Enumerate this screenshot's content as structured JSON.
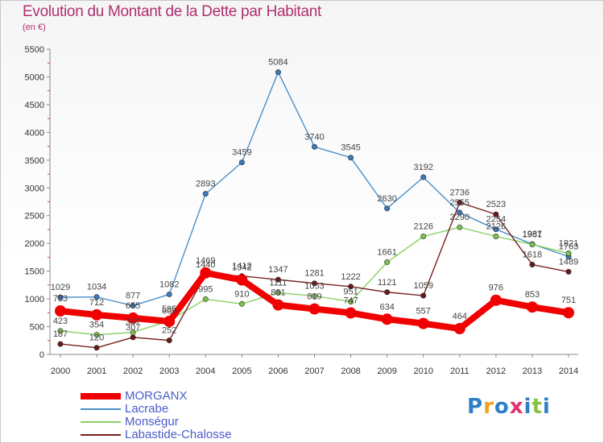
{
  "header": {
    "title": "Evolution du Montant de la Dette par Habitant",
    "unit": "(en €)"
  },
  "chart_data": {
    "type": "line",
    "title": "Evolution du Montant de la Dette par Habitant",
    "ylabel": "(en €)",
    "ylim": [
      0,
      5500
    ],
    "yticks": [
      0,
      500,
      1000,
      1500,
      2000,
      2500,
      3000,
      3500,
      4000,
      4500,
      5000,
      5500
    ],
    "x": [
      "2000",
      "2001",
      "2002",
      "2003",
      "2004",
      "2005",
      "2006",
      "2007",
      "2008",
      "2009",
      "2010",
      "2011",
      "2012",
      "2013",
      "2014"
    ],
    "grid": false,
    "legend": "bottom-left",
    "series": [
      {
        "name": "Lacrabe",
        "color": "#4a90c8",
        "values": [
          1029,
          1034,
          877,
          1082,
          2893,
          3459,
          5084,
          3740,
          3545,
          2630,
          3192,
          2555,
          2254,
          1987,
          1763
        ]
      },
      {
        "name": "Monségur",
        "color": "#88d060",
        "values": [
          423,
          354,
          397,
          605,
          995,
          910,
          1111,
          1053,
          951,
          1661,
          2126,
          2290,
          2126,
          1981,
          1821
        ]
      },
      {
        "name": "Labastide-Chalosse",
        "color": "#7a2020",
        "values": [
          187,
          120,
          307,
          252,
          1440,
          1412,
          1347,
          1281,
          1222,
          1121,
          1059,
          2736,
          2523,
          1618,
          1489
        ]
      },
      {
        "name": "MORGANX",
        "color": "#f00000",
        "values": [
          783,
          712,
          655,
          595,
          1469,
          1342,
          891,
          819,
          747,
          634,
          557,
          464,
          976,
          853,
          751
        ]
      }
    ]
  },
  "legend": {
    "items": [
      {
        "label": "MORGANX",
        "color": "#f00000"
      },
      {
        "label": "Lacrabe",
        "color": "#4a90c8"
      },
      {
        "label": "Monségur",
        "color": "#88d060"
      },
      {
        "label": "Labastide-Chalosse",
        "color": "#7a2020"
      }
    ]
  },
  "branding": {
    "logo_text": "Proxiti"
  }
}
